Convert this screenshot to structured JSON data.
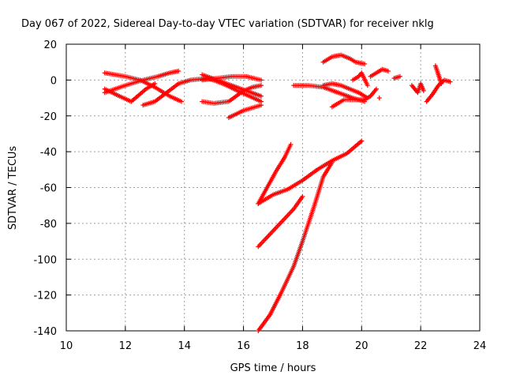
{
  "chart_data": {
    "type": "scatter",
    "title": "Day 067 of 2022, Sidereal Day-to-day VTEC variation (SDTVAR) for receiver nklg",
    "xlabel": "GPS time / hours",
    "ylabel": "SDTVAR / TECUs",
    "xlim": [
      10,
      24
    ],
    "ylim": [
      -140,
      20
    ],
    "xticks": [
      10,
      12,
      14,
      16,
      18,
      20,
      22,
      24
    ],
    "yticks": [
      -140,
      -120,
      -100,
      -80,
      -60,
      -40,
      -20,
      0,
      20
    ],
    "grid": true,
    "marker": "+",
    "color": "#ff0000",
    "series": [
      {
        "points": [
          [
            11.3,
            4
          ],
          [
            12.0,
            2
          ],
          [
            12.5,
            0
          ],
          [
            13.0,
            -4
          ],
          [
            13.5,
            -9
          ],
          [
            13.9,
            -12
          ]
        ]
      },
      {
        "points": [
          [
            11.3,
            -7
          ],
          [
            12.0,
            -3
          ],
          [
            12.6,
            0
          ],
          [
            13.1,
            2
          ],
          [
            13.5,
            4
          ],
          [
            13.8,
            5
          ]
        ]
      },
      {
        "points": [
          [
            11.3,
            -5
          ],
          [
            11.8,
            -9
          ],
          [
            12.2,
            -12
          ],
          [
            12.7,
            -5
          ],
          [
            13.0,
            -2
          ]
        ]
      },
      {
        "points": [
          [
            12.6,
            -14
          ],
          [
            13.0,
            -12
          ],
          [
            13.4,
            -7
          ],
          [
            13.8,
            -2
          ],
          [
            14.2,
            0
          ],
          [
            14.8,
            1
          ],
          [
            15.3,
            -2
          ],
          [
            15.8,
            -6
          ],
          [
            16.2,
            -9
          ],
          [
            16.6,
            -12
          ]
        ]
      },
      {
        "points": [
          [
            14.6,
            3
          ],
          [
            15.1,
            0
          ],
          [
            15.6,
            -3
          ],
          [
            16.1,
            -6
          ],
          [
            16.6,
            -9
          ]
        ]
      },
      {
        "points": [
          [
            14.6,
            -12
          ],
          [
            15.0,
            -13
          ],
          [
            15.5,
            -12
          ],
          [
            16.0,
            -6
          ],
          [
            16.3,
            -4
          ],
          [
            16.6,
            -3
          ]
        ]
      },
      {
        "points": [
          [
            14.6,
            0
          ],
          [
            15.1,
            1
          ],
          [
            15.6,
            2
          ],
          [
            16.1,
            2
          ],
          [
            16.6,
            0
          ]
        ]
      },
      {
        "points": [
          [
            15.5,
            -21
          ],
          [
            16.0,
            -17
          ],
          [
            16.6,
            -14
          ]
        ]
      },
      {
        "points": [
          [
            16.5,
            -69
          ],
          [
            17.0,
            -64
          ],
          [
            17.5,
            -61
          ],
          [
            18.0,
            -56
          ],
          [
            18.5,
            -50
          ],
          [
            19.0,
            -45
          ],
          [
            19.5,
            -41
          ],
          [
            20.0,
            -34
          ]
        ]
      },
      {
        "points": [
          [
            16.5,
            -69
          ],
          [
            16.8,
            -60
          ],
          [
            17.1,
            -51
          ],
          [
            17.4,
            -43
          ],
          [
            17.6,
            -36
          ]
        ]
      },
      {
        "points": [
          [
            16.5,
            -93
          ],
          [
            16.9,
            -86
          ],
          [
            17.3,
            -79
          ],
          [
            17.7,
            -72
          ],
          [
            18.0,
            -65
          ]
        ]
      },
      {
        "points": [
          [
            16.5,
            -140
          ],
          [
            16.9,
            -131
          ],
          [
            17.3,
            -118
          ],
          [
            17.7,
            -104
          ],
          [
            18.0,
            -90
          ],
          [
            18.4,
            -70
          ],
          [
            18.7,
            -54
          ],
          [
            19.0,
            -46
          ]
        ]
      },
      {
        "points": [
          [
            17.7,
            -3
          ],
          [
            18.2,
            -3
          ],
          [
            18.7,
            -4
          ],
          [
            19.2,
            -7
          ],
          [
            19.7,
            -10
          ],
          [
            20.1,
            -12
          ]
        ]
      },
      {
        "points": [
          [
            18.7,
            -3
          ],
          [
            19.0,
            -2
          ],
          [
            19.3,
            -3
          ],
          [
            19.6,
            -5
          ],
          [
            19.9,
            -7
          ],
          [
            20.2,
            -10
          ]
        ]
      },
      {
        "points": [
          [
            18.7,
            10
          ],
          [
            19.0,
            13
          ],
          [
            19.3,
            14
          ],
          [
            19.6,
            12
          ],
          [
            19.8,
            10
          ],
          [
            20.1,
            9
          ]
        ]
      },
      {
        "points": [
          [
            19.0,
            -15
          ],
          [
            19.4,
            -11
          ],
          [
            19.8,
            -11
          ],
          [
            20.1,
            -11
          ],
          [
            20.3,
            -9
          ],
          [
            20.5,
            -5
          ]
        ]
      },
      {
        "points": [
          [
            19.7,
            0
          ],
          [
            19.9,
            2
          ],
          [
            20.0,
            4
          ],
          [
            20.2,
            -3
          ]
        ]
      },
      {
        "points": [
          [
            20.3,
            2
          ],
          [
            20.5,
            4
          ],
          [
            20.7,
            6
          ],
          [
            20.9,
            5
          ]
        ]
      },
      {
        "points": [
          [
            20.6,
            -10
          ]
        ]
      },
      {
        "points": [
          [
            21.1,
            1
          ],
          [
            21.3,
            2
          ]
        ]
      },
      {
        "points": [
          [
            21.7,
            -3
          ],
          [
            21.9,
            -7
          ],
          [
            22.0,
            -2
          ],
          [
            22.1,
            -6
          ]
        ]
      },
      {
        "points": [
          [
            22.2,
            -12
          ],
          [
            22.4,
            -8
          ],
          [
            22.6,
            -3
          ],
          [
            22.8,
            0
          ],
          [
            23.0,
            -1
          ]
        ]
      },
      {
        "points": [
          [
            22.5,
            8
          ],
          [
            22.6,
            3
          ],
          [
            22.7,
            -2
          ]
        ]
      }
    ]
  }
}
